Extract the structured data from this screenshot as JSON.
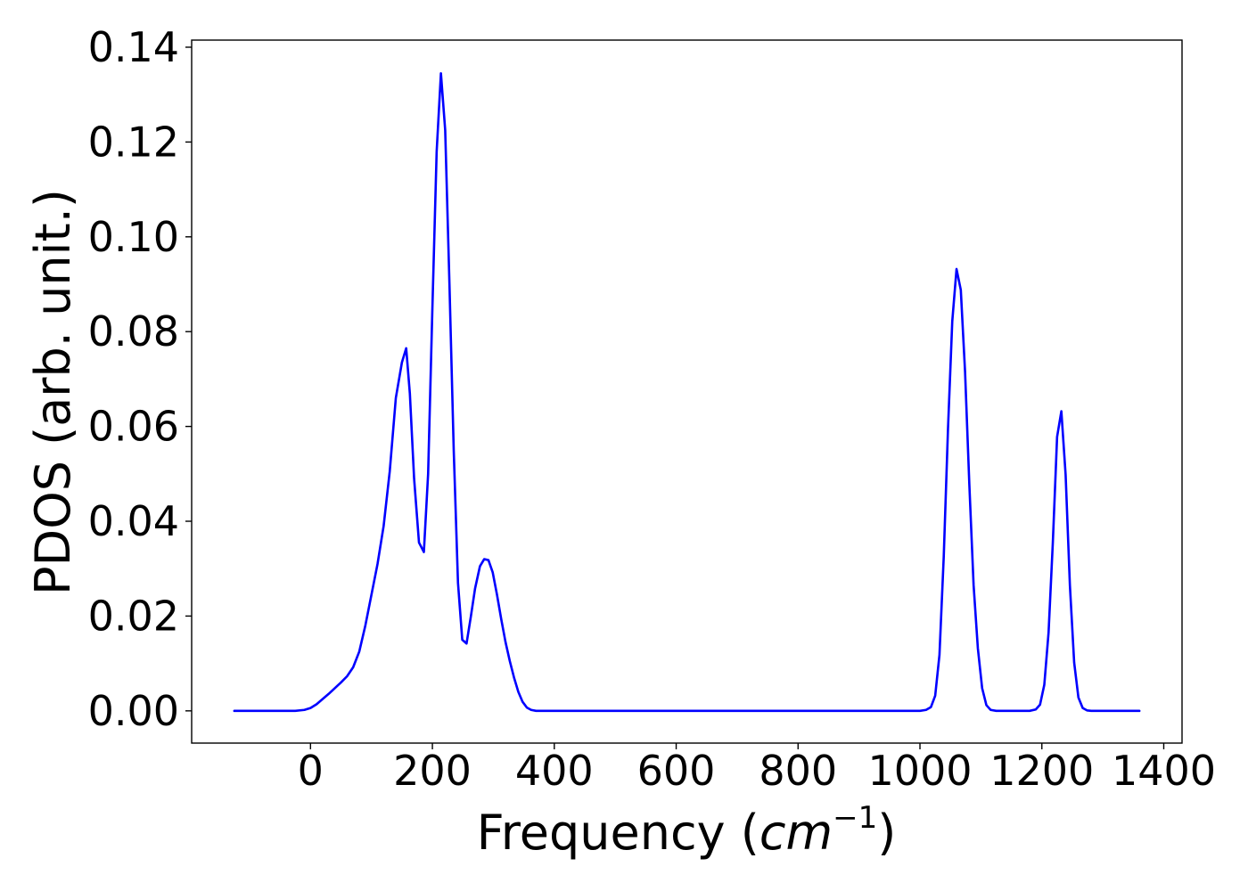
{
  "chart_data": {
    "type": "line",
    "xlabel_text": "Frequency (",
    "xlabel_math_base": "cm",
    "xlabel_math_sup": "−1",
    "xlabel_close": ")",
    "ylabel": "PDOS (arb. unit.)",
    "xlim": [
      -195,
      1430
    ],
    "ylim": [
      -0.0068,
      0.1415
    ],
    "xticks": [
      0,
      200,
      400,
      600,
      800,
      1000,
      1200,
      1400
    ],
    "xtick_labels": [
      "0",
      "200",
      "400",
      "600",
      "800",
      "1000",
      "1200",
      "1400"
    ],
    "yticks": [
      0.0,
      0.02,
      0.04,
      0.06,
      0.08,
      0.1,
      0.12,
      0.14
    ],
    "ytick_labels": [
      "0.00",
      "0.02",
      "0.04",
      "0.06",
      "0.08",
      "0.10",
      "0.12",
      "0.14"
    ],
    "grid": false,
    "series": [
      {
        "color": "#0000ff",
        "x": [
          -125,
          -100,
          -75,
          -50,
          -25,
          -10,
          0,
          10,
          20,
          30,
          40,
          50,
          60,
          70,
          80,
          90,
          100,
          110,
          120,
          130,
          140,
          150,
          157,
          163,
          170,
          178,
          186,
          193,
          200,
          207,
          214,
          221,
          228,
          235,
          242,
          249,
          256,
          263,
          270,
          278,
          285,
          292,
          299,
          306,
          313,
          320,
          327,
          334,
          341,
          348,
          355,
          362,
          370,
          380,
          400,
          500,
          600,
          700,
          800,
          900,
          1000,
          1010,
          1018,
          1025,
          1032,
          1039,
          1046,
          1053,
          1060,
          1067,
          1074,
          1081,
          1088,
          1095,
          1102,
          1109,
          1116,
          1125,
          1140,
          1160,
          1180,
          1190,
          1197,
          1204,
          1211,
          1218,
          1225,
          1232,
          1239,
          1246,
          1253,
          1260,
          1267,
          1274,
          1281,
          1290,
          1320,
          1360
        ],
        "y": [
          0.0,
          0.0,
          0.0,
          0.0,
          0.0,
          0.0002,
          0.0006,
          0.0014,
          0.0025,
          0.0036,
          0.0048,
          0.006,
          0.0073,
          0.0092,
          0.0125,
          0.018,
          0.0245,
          0.031,
          0.039,
          0.0505,
          0.066,
          0.0735,
          0.0765,
          0.067,
          0.049,
          0.0355,
          0.0335,
          0.05,
          0.085,
          0.118,
          0.1345,
          0.1225,
          0.09,
          0.055,
          0.027,
          0.015,
          0.0142,
          0.0198,
          0.0258,
          0.0305,
          0.032,
          0.0318,
          0.0292,
          0.0245,
          0.0193,
          0.0145,
          0.0105,
          0.007,
          0.004,
          0.0019,
          0.0007,
          0.0002,
          0.0,
          0.0,
          0.0,
          0.0,
          0.0,
          0.0,
          0.0,
          0.0,
          0.0,
          0.0002,
          0.0008,
          0.0032,
          0.0118,
          0.0325,
          0.0595,
          0.0822,
          0.0932,
          0.0888,
          0.0715,
          0.0478,
          0.0265,
          0.0132,
          0.0048,
          0.0012,
          0.0002,
          0.0,
          0.0,
          0.0,
          0.0,
          0.0003,
          0.0013,
          0.0055,
          0.0165,
          0.0355,
          0.0578,
          0.0632,
          0.0498,
          0.0265,
          0.0102,
          0.0028,
          0.0006,
          0.0001,
          0.0,
          0.0,
          0.0,
          0.0
        ]
      }
    ]
  }
}
